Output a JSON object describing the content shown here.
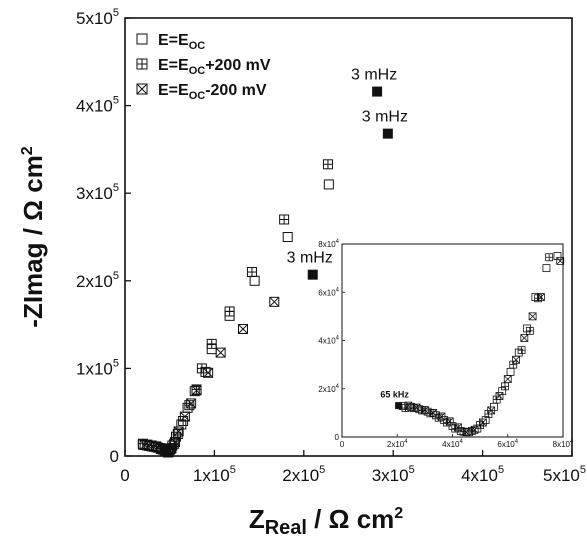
{
  "chart_data": {
    "type": "scatter",
    "xlabel_main": "Z",
    "xlabel_sub": "Real",
    "xlabel_unit": " / Ω cm",
    "xlabel_exp": "2",
    "ylabel_main": "-ZImag / Ω cm",
    "ylabel_exp": "2",
    "xlim": [
      0,
      500000
    ],
    "ylim": [
      0,
      500000
    ],
    "x_ticks": [
      {
        "value": 0,
        "label": "0"
      },
      {
        "value": 100000,
        "label": "1x10^5"
      },
      {
        "value": 200000,
        "label": "2x10^5"
      },
      {
        "value": 300000,
        "label": "3x10^5"
      },
      {
        "value": 400000,
        "label": "4x10^5"
      },
      {
        "value": 500000,
        "label": "5x10^5"
      }
    ],
    "y_ticks": [
      {
        "value": 0,
        "label": "0"
      },
      {
        "value": 100000,
        "label": "1x10^5"
      },
      {
        "value": 200000,
        "label": "2x10^5"
      },
      {
        "value": 300000,
        "label": "3x10^5"
      },
      {
        "value": 400000,
        "label": "4x10^5"
      },
      {
        "value": 500000,
        "label": "5x10^5"
      }
    ],
    "legend_position": "top-left",
    "series": [
      {
        "name": "E=E_OC",
        "label_main": "E=E",
        "label_sub": "OC",
        "label_tail": "",
        "marker": "square",
        "points": [
          [
            20000,
            13000
          ],
          [
            25000,
            12000
          ],
          [
            30000,
            11000
          ],
          [
            35000,
            10000
          ],
          [
            40000,
            8000
          ],
          [
            45000,
            6000
          ],
          [
            48000,
            4000
          ],
          [
            50000,
            7000
          ],
          [
            53000,
            12000
          ],
          [
            57000,
            22000
          ],
          [
            63000,
            36000
          ],
          [
            70000,
            55000
          ],
          [
            78000,
            74000
          ],
          [
            90000,
            96000
          ],
          [
            97000,
            122000
          ],
          [
            117000,
            160000
          ],
          [
            145000,
            200000
          ],
          [
            182000,
            250000
          ],
          [
            228000,
            310000
          ]
        ]
      },
      {
        "name": "E=E_OC+200 mV",
        "label_main": "E=E",
        "label_sub": "OC",
        "label_tail": "+200 mV",
        "marker": "square-plus",
        "points": [
          [
            20000,
            14000
          ],
          [
            25000,
            13000
          ],
          [
            30000,
            12000
          ],
          [
            35000,
            11000
          ],
          [
            40000,
            9000
          ],
          [
            44000,
            7000
          ],
          [
            48000,
            5000
          ],
          [
            51000,
            8000
          ],
          [
            55000,
            14000
          ],
          [
            59000,
            25000
          ],
          [
            65000,
            40000
          ],
          [
            72000,
            58000
          ],
          [
            80000,
            76000
          ],
          [
            86000,
            100000
          ],
          [
            97000,
            128000
          ],
          [
            117000,
            165000
          ],
          [
            142000,
            210000
          ],
          [
            178000,
            270000
          ],
          [
            227000,
            333000
          ]
        ]
      },
      {
        "name": "E=E_OC-200 mV",
        "label_main": "E=E",
        "label_sub": "OC",
        "label_tail": "-200 mV",
        "marker": "square-x",
        "points": [
          [
            22000,
            12500
          ],
          [
            27000,
            11500
          ],
          [
            32000,
            10500
          ],
          [
            37000,
            9500
          ],
          [
            42000,
            7500
          ],
          [
            46000,
            5500
          ],
          [
            49000,
            4500
          ],
          [
            52000,
            9000
          ],
          [
            56000,
            16000
          ],
          [
            60000,
            28000
          ],
          [
            67000,
            45000
          ],
          [
            74000,
            60000
          ],
          [
            80000,
            75000
          ],
          [
            93000,
            95000
          ],
          [
            107000,
            118000
          ],
          [
            132000,
            145000
          ],
          [
            167000,
            176000
          ]
        ]
      }
    ],
    "highlight_points": [
      {
        "x": 210000,
        "y": 207000,
        "label": "3 mHz"
      },
      {
        "x": 282000,
        "y": 416000,
        "label": "3 mHz"
      },
      {
        "x": 294000,
        "y": 368000,
        "label": "3 mHz"
      }
    ],
    "inset": {
      "xlim": [
        0,
        80000
      ],
      "ylim": [
        0,
        80000
      ],
      "x_ticks": [
        {
          "value": 0,
          "label": "0"
        },
        {
          "value": 20000,
          "label": "2x10^4"
        },
        {
          "value": 40000,
          "label": "4x10^4"
        },
        {
          "value": 60000,
          "label": "6x10^4"
        },
        {
          "value": 80000,
          "label": "8x10^4"
        }
      ],
      "y_ticks": [
        {
          "value": 0,
          "label": "0"
        },
        {
          "value": 20000,
          "label": "2x10^4"
        },
        {
          "value": 40000,
          "label": "4x10^4"
        },
        {
          "value": 60000,
          "label": "6x10^4"
        },
        {
          "value": 80000,
          "label": "8x10^4"
        }
      ],
      "highlight": {
        "x": 20500,
        "y": 13000,
        "label": "65 kHz"
      },
      "series": [
        {
          "marker": "square",
          "points": [
            [
              22000,
              12800
            ],
            [
              25000,
              12500
            ],
            [
              28000,
              11500
            ],
            [
              31000,
              10500
            ],
            [
              34000,
              9000
            ],
            [
              37000,
              7000
            ],
            [
              40000,
              4500
            ],
            [
              43000,
              2500
            ],
            [
              46000,
              2000
            ],
            [
              49000,
              3500
            ],
            [
              52000,
              7000
            ],
            [
              55000,
              12500
            ],
            [
              58000,
              19000
            ],
            [
              61000,
              27000
            ],
            [
              64000,
              35000
            ],
            [
              67000,
              45000
            ],
            [
              70000,
              58000
            ],
            [
              74000,
              70000
            ],
            [
              78000,
              75000
            ]
          ]
        },
        {
          "marker": "square-plus",
          "points": [
            [
              23000,
              12000
            ],
            [
              26000,
              12000
            ],
            [
              29000,
              11000
            ],
            [
              32000,
              9800
            ],
            [
              35000,
              8000
            ],
            [
              38000,
              6000
            ],
            [
              41000,
              3500
            ],
            [
              44000,
              2200
            ],
            [
              47000,
              2500
            ],
            [
              50000,
              5000
            ],
            [
              53000,
              9500
            ],
            [
              56000,
              15500
            ],
            [
              59000,
              21000
            ],
            [
              62000,
              30000
            ],
            [
              65000,
              36000
            ],
            [
              68000,
              44000
            ],
            [
              71000,
              57500
            ],
            [
              75000,
              74500
            ]
          ]
        },
        {
          "marker": "square-x",
          "points": [
            [
              24000,
              13000
            ],
            [
              27000,
              12200
            ],
            [
              30000,
              11200
            ],
            [
              33000,
              10000
            ],
            [
              36000,
              8500
            ],
            [
              39000,
              6500
            ],
            [
              42000,
              4000
            ],
            [
              45000,
              2000
            ],
            [
              48000,
              3000
            ],
            [
              51000,
              6000
            ],
            [
              54000,
              11000
            ],
            [
              57000,
              17000
            ],
            [
              60000,
              24000
            ],
            [
              63000,
              32000
            ],
            [
              66000,
              41000
            ],
            [
              69000,
              50000
            ],
            [
              72000,
              58000
            ],
            [
              79000,
              73000
            ]
          ]
        }
      ]
    }
  }
}
